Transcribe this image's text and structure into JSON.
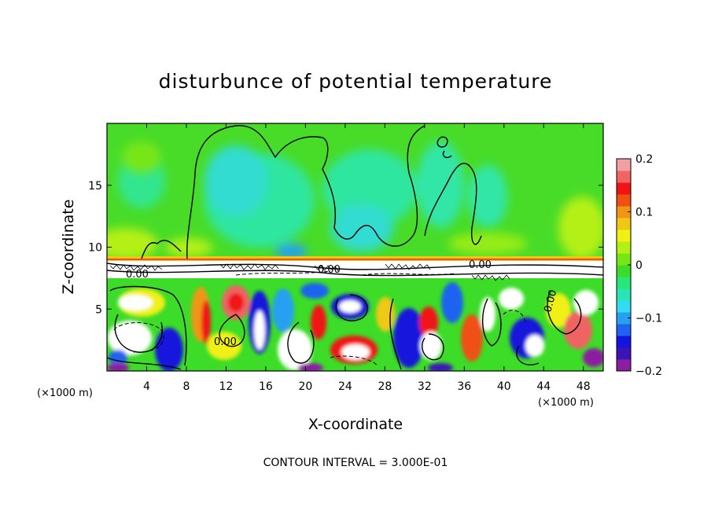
{
  "chart_data": {
    "type": "heatmap",
    "title": "disturbunce of potential temperature",
    "xlabel": "X-coordinate",
    "ylabel": "Z-coordinate",
    "x_unit": "(×1000 m)",
    "z_unit": "(×1000 m)",
    "xlim": [
      0,
      50
    ],
    "ylim": [
      0,
      20
    ],
    "x_ticks": [
      4,
      8,
      12,
      16,
      20,
      24,
      28,
      32,
      36,
      40,
      44,
      48
    ],
    "y_ticks": [
      5,
      10,
      15
    ],
    "colorbar": {
      "range": [
        -0.2,
        0.2
      ],
      "tick_values": [
        0.2,
        0.1,
        0,
        -0.1,
        -0.2
      ],
      "tick_labels": [
        "0.2",
        "0.1",
        "0",
        "−0.1",
        "−0.2"
      ],
      "colors": [
        "#8c1ea0",
        "#3c14b4",
        "#1414dc",
        "#1e64f0",
        "#28a0f0",
        "#32dcf0",
        "#28e6b4",
        "#28e678",
        "#3cdc28",
        "#78e614",
        "#b4f014",
        "#f0f014",
        "#f0c814",
        "#f09614",
        "#f05014",
        "#f01414",
        "#f06464",
        "#f0a0a0"
      ]
    },
    "contour_labels": [
      "0.00",
      "0.00",
      "0.00",
      "0.00",
      "0.00"
    ],
    "contour_interval_text": "CONTOUR INTERVAL = 3.000E-01"
  }
}
